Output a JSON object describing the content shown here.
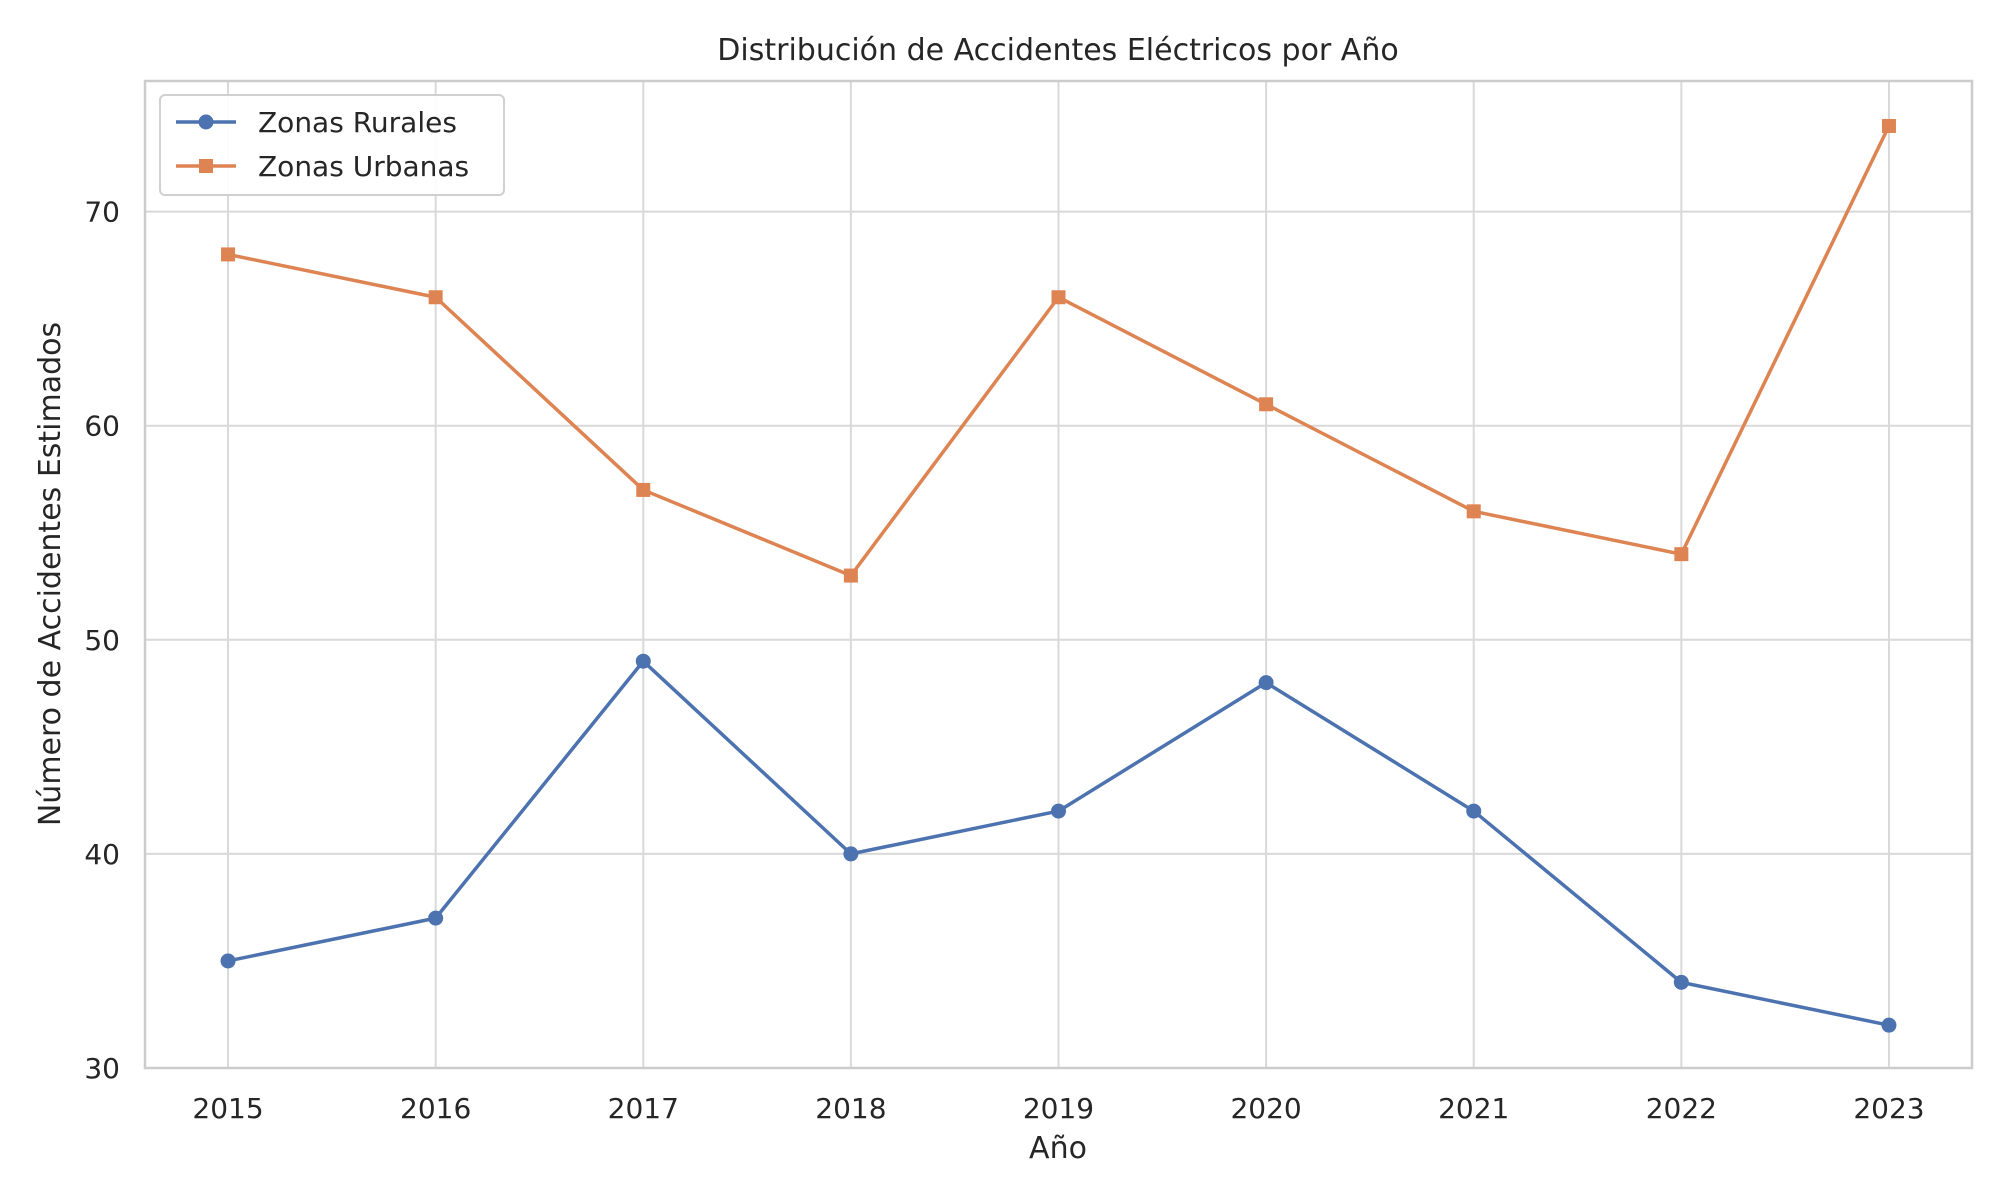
{
  "chart_data": {
    "type": "line",
    "title": "Distribución de Accidentes Eléctricos por Año",
    "xlabel": "Año",
    "ylabel": "Número de Accidentes Estimados",
    "x": [
      2015,
      2016,
      2017,
      2018,
      2019,
      2020,
      2021,
      2022,
      2023
    ],
    "xlim": [
      2014.6,
      2023.4
    ],
    "ylim": [
      30,
      76.1
    ],
    "yticks": [
      30,
      40,
      50,
      60,
      70
    ],
    "grid": true,
    "legend_position": "upper-left",
    "series": [
      {
        "name": "Zonas Rurales",
        "marker": "circle",
        "color": "#4c72b0",
        "values": [
          35,
          37,
          49,
          40,
          42,
          48,
          42,
          34,
          32
        ]
      },
      {
        "name": "Zonas Urbanas",
        "marker": "square",
        "color": "#dd8452",
        "values": [
          68,
          66,
          57,
          53,
          66,
          61,
          56,
          54,
          74
        ]
      }
    ]
  }
}
